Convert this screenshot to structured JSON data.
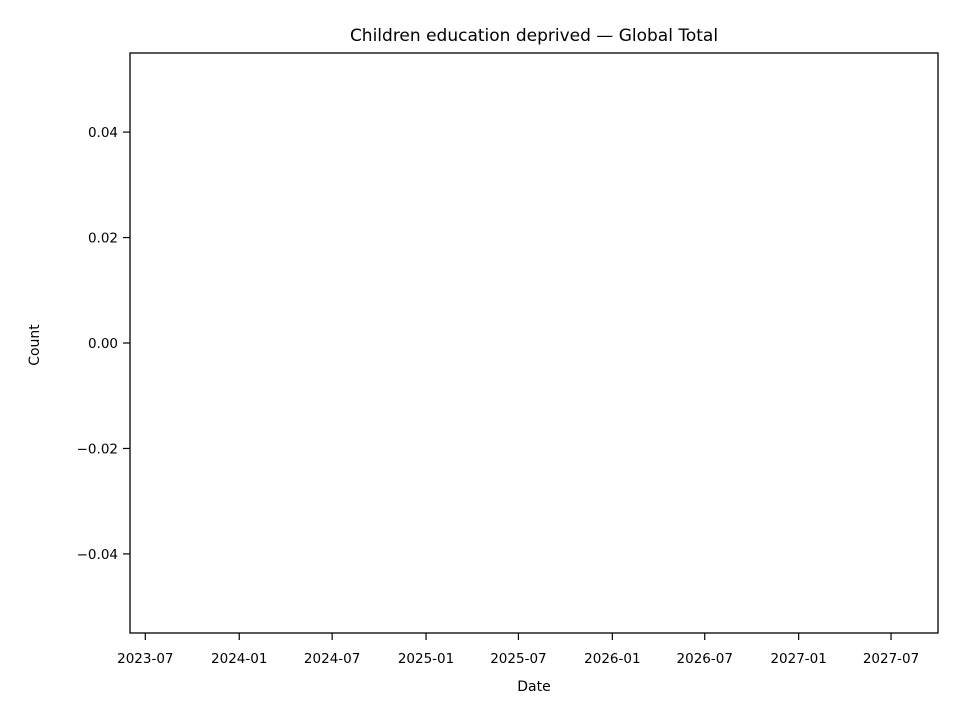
{
  "chart_data": {
    "type": "line",
    "title": "Children education deprived — Global Total",
    "xlabel": "Date",
    "ylabel": "Count",
    "x": [],
    "series": [
      {
        "values": []
      }
    ],
    "x_ticks": [
      "2023-07",
      "2024-01",
      "2024-07",
      "2025-01",
      "2025-07",
      "2026-01",
      "2026-07",
      "2027-01",
      "2027-07"
    ],
    "xlim": [
      "2023-06-01",
      "2027-10-01"
    ],
    "y_ticks": [
      0.04,
      0.02,
      0.0,
      -0.02,
      -0.04
    ],
    "y_tick_labels": [
      "0.04",
      "0.02",
      "0.00",
      "−0.02",
      "−0.04"
    ],
    "ylim": [
      -0.055,
      0.055
    ],
    "grid": false,
    "legend": false
  }
}
